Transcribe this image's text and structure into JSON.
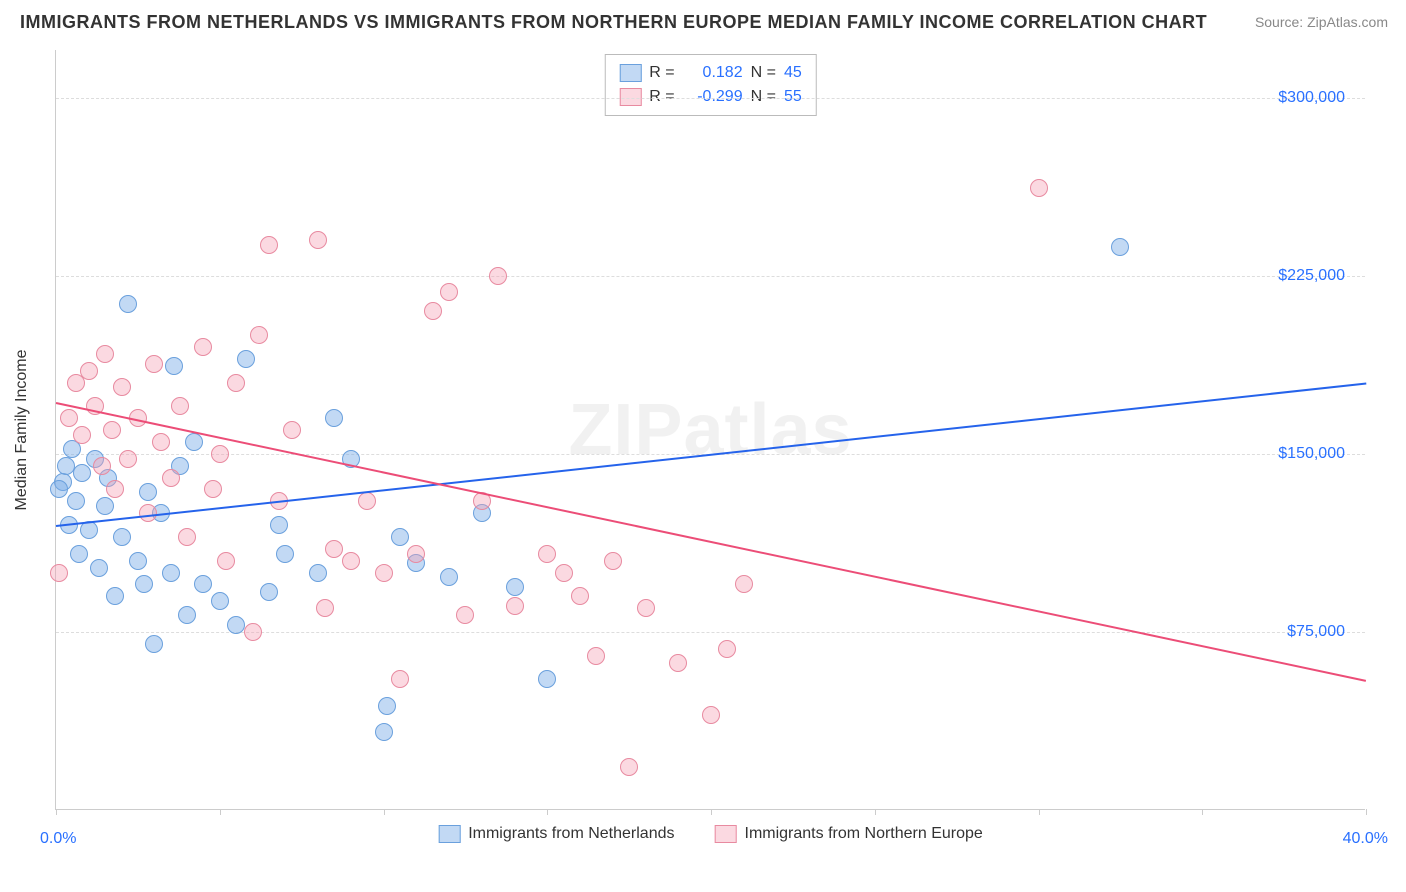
{
  "title": "IMMIGRANTS FROM NETHERLANDS VS IMMIGRANTS FROM NORTHERN EUROPE MEDIAN FAMILY INCOME CORRELATION CHART",
  "source": "Source: ZipAtlas.com",
  "watermark": "ZIPatlas",
  "yaxis_title": "Median Family Income",
  "colors": {
    "blue_fill": "rgba(120,170,230,0.45)",
    "blue_stroke": "#6aa0dd",
    "blue_line": "#2563eb",
    "pink_fill": "rgba(245,160,180,0.40)",
    "pink_stroke": "#e88aa0",
    "pink_line": "#ec4d77",
    "tick_label": "#2970ff",
    "grid": "#dddddd",
    "axis": "#cccccc",
    "text": "#333333",
    "background": "#ffffff"
  },
  "xlim": [
    0,
    40
  ],
  "ylim": [
    0,
    320000
  ],
  "xtick_positions": [
    0,
    5,
    10,
    15,
    20,
    25,
    30,
    35,
    40
  ],
  "ytick_values": [
    75000,
    150000,
    225000,
    300000
  ],
  "ytick_labels": [
    "$75,000",
    "$150,000",
    "$225,000",
    "$300,000"
  ],
  "xlim_labels": {
    "min": "0.0%",
    "max": "40.0%"
  },
  "marker_radius": 9,
  "marker_stroke_width": 1,
  "line_width": 2,
  "series": [
    {
      "name": "Immigrants from Netherlands",
      "color_key": "blue",
      "R": "0.182",
      "N": "45",
      "regression": {
        "x1": 0,
        "y1": 120000,
        "x2": 40,
        "y2": 180000
      },
      "points": [
        [
          0.2,
          138000
        ],
        [
          0.3,
          145000
        ],
        [
          0.4,
          120000
        ],
        [
          0.5,
          152000
        ],
        [
          0.6,
          130000
        ],
        [
          0.7,
          108000
        ],
        [
          0.8,
          142000
        ],
        [
          1.0,
          118000
        ],
        [
          1.2,
          148000
        ],
        [
          1.3,
          102000
        ],
        [
          1.5,
          128000
        ],
        [
          1.6,
          140000
        ],
        [
          1.8,
          90000
        ],
        [
          2.0,
          115000
        ],
        [
          2.2,
          213000
        ],
        [
          2.5,
          105000
        ],
        [
          2.7,
          95000
        ],
        [
          2.8,
          134000
        ],
        [
          3.0,
          70000
        ],
        [
          3.2,
          125000
        ],
        [
          3.5,
          100000
        ],
        [
          3.6,
          187000
        ],
        [
          3.8,
          145000
        ],
        [
          4.0,
          82000
        ],
        [
          4.2,
          155000
        ],
        [
          4.5,
          95000
        ],
        [
          5.0,
          88000
        ],
        [
          5.5,
          78000
        ],
        [
          5.8,
          190000
        ],
        [
          6.5,
          92000
        ],
        [
          6.8,
          120000
        ],
        [
          7.0,
          108000
        ],
        [
          8.0,
          100000
        ],
        [
          8.5,
          165000
        ],
        [
          9.0,
          148000
        ],
        [
          10.0,
          33000
        ],
        [
          10.1,
          44000
        ],
        [
          10.5,
          115000
        ],
        [
          11.0,
          104000
        ],
        [
          12.0,
          98000
        ],
        [
          13.0,
          125000
        ],
        [
          14.0,
          94000
        ],
        [
          15.0,
          55000
        ],
        [
          32.5,
          237000
        ],
        [
          0.1,
          135000
        ]
      ]
    },
    {
      "name": "Immigrants from Northern Europe",
      "color_key": "pink",
      "R": "-0.299",
      "N": "55",
      "regression": {
        "x1": 0,
        "y1": 172000,
        "x2": 40,
        "y2": 55000
      },
      "points": [
        [
          0.1,
          100000
        ],
        [
          0.4,
          165000
        ],
        [
          0.6,
          180000
        ],
        [
          0.8,
          158000
        ],
        [
          1.0,
          185000
        ],
        [
          1.2,
          170000
        ],
        [
          1.4,
          145000
        ],
        [
          1.5,
          192000
        ],
        [
          1.7,
          160000
        ],
        [
          1.8,
          135000
        ],
        [
          2.0,
          178000
        ],
        [
          2.2,
          148000
        ],
        [
          2.5,
          165000
        ],
        [
          2.8,
          125000
        ],
        [
          3.0,
          188000
        ],
        [
          3.2,
          155000
        ],
        [
          3.5,
          140000
        ],
        [
          3.8,
          170000
        ],
        [
          4.0,
          115000
        ],
        [
          4.5,
          195000
        ],
        [
          4.8,
          135000
        ],
        [
          5.0,
          150000
        ],
        [
          5.2,
          105000
        ],
        [
          5.5,
          180000
        ],
        [
          6.0,
          75000
        ],
        [
          6.5,
          238000
        ],
        [
          6.8,
          130000
        ],
        [
          7.2,
          160000
        ],
        [
          8.0,
          240000
        ],
        [
          8.2,
          85000
        ],
        [
          8.5,
          110000
        ],
        [
          9.0,
          105000
        ],
        [
          9.5,
          130000
        ],
        [
          10.0,
          100000
        ],
        [
          10.5,
          55000
        ],
        [
          11.0,
          108000
        ],
        [
          11.5,
          210000
        ],
        [
          12.0,
          218000
        ],
        [
          12.5,
          82000
        ],
        [
          13.0,
          130000
        ],
        [
          13.5,
          225000
        ],
        [
          14.0,
          86000
        ],
        [
          15.0,
          108000
        ],
        [
          15.5,
          100000
        ],
        [
          16.0,
          90000
        ],
        [
          16.5,
          65000
        ],
        [
          17.0,
          105000
        ],
        [
          17.5,
          18000
        ],
        [
          18.0,
          85000
        ],
        [
          19.0,
          62000
        ],
        [
          20.0,
          40000
        ],
        [
          20.5,
          68000
        ],
        [
          21.0,
          95000
        ],
        [
          30.0,
          262000
        ],
        [
          6.2,
          200000
        ]
      ]
    }
  ],
  "legend_stat_labels": {
    "R": "R =",
    "N": "N ="
  }
}
